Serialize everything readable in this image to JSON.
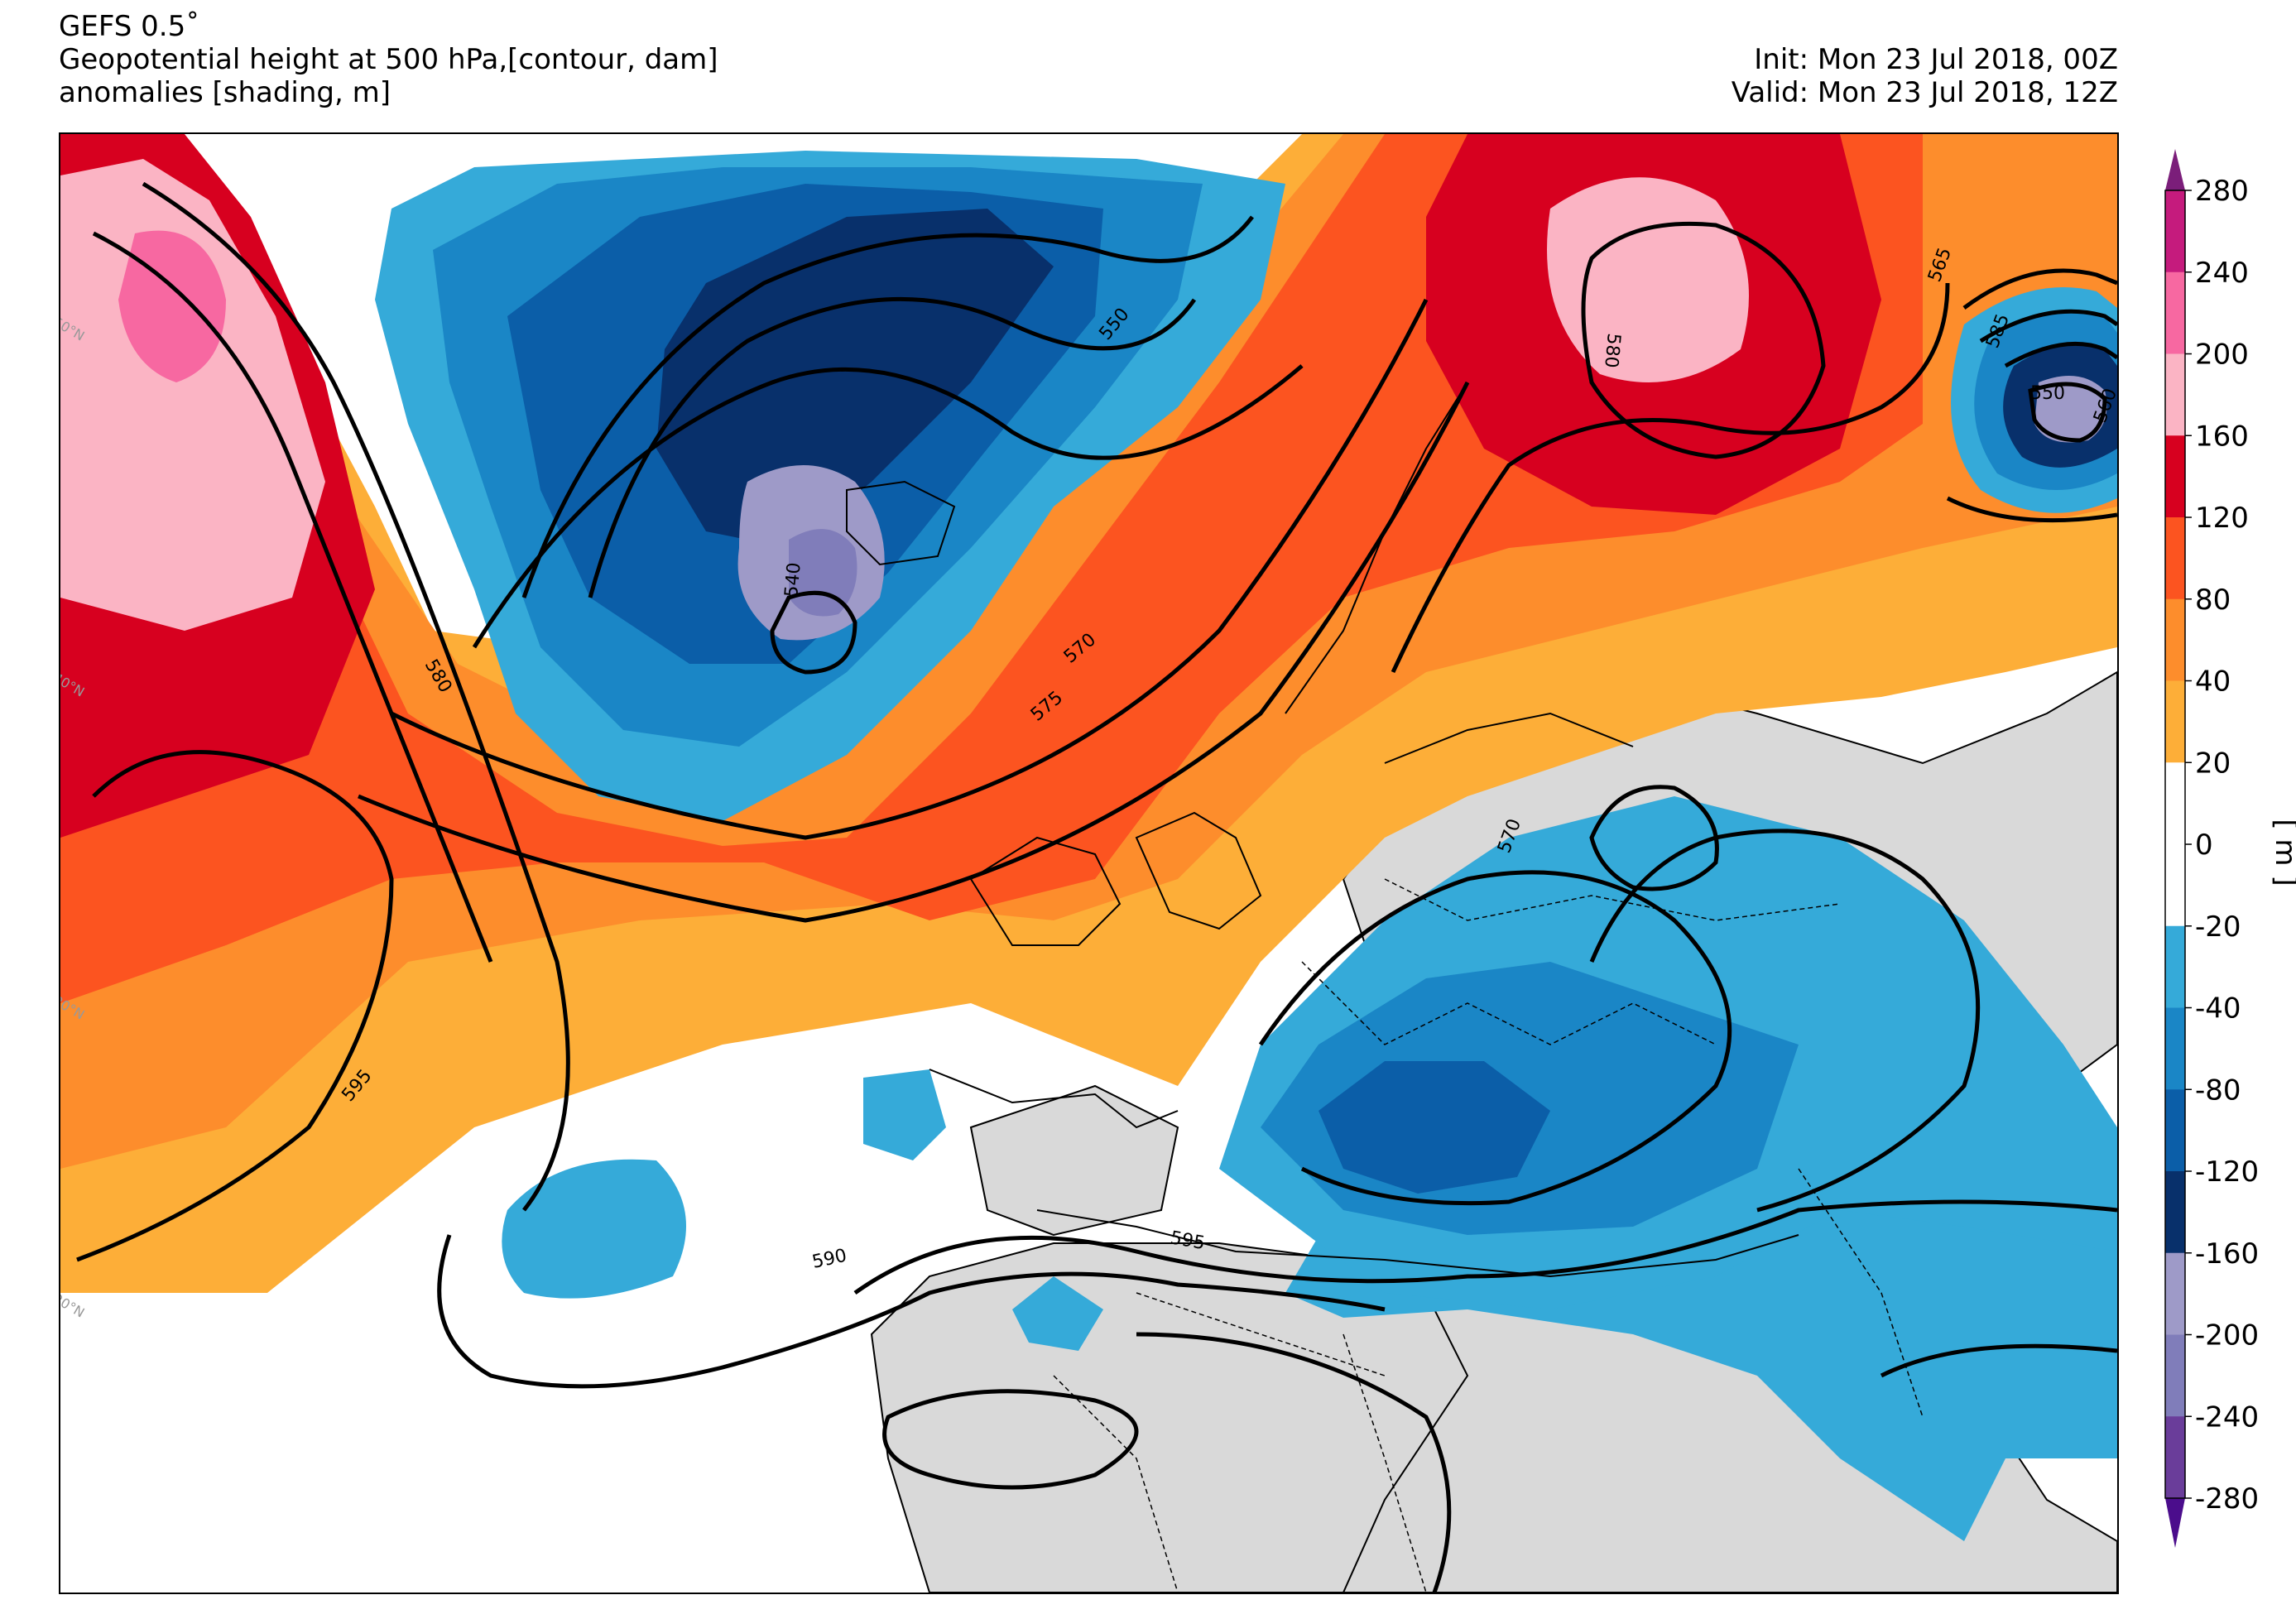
{
  "header": {
    "model": "GEFS 0.5˚",
    "variable": "Geopotential height at 500 hPa,[contour, dam]",
    "shading": "anomalies [shading, m]",
    "init": "Init: Mon 23 Jul 2018, 00Z",
    "valid": "Valid: Mon 23 Jul 2018, 12Z"
  },
  "map": {
    "latitude_labels": [
      "50°N",
      "40°N",
      "30°N",
      "20°N"
    ],
    "contour_labels": [
      "550",
      "540",
      "570",
      "575",
      "580",
      "595",
      "590",
      "595",
      "570",
      "580",
      "565",
      "550",
      "585",
      "560"
    ],
    "land_color": "#d9d9d9",
    "contour_color": "#000000"
  },
  "colorbar": {
    "unit": "[ m ]",
    "ticks": [
      "280",
      "240",
      "200",
      "160",
      "120",
      "80",
      "40",
      "20",
      "0",
      "-20",
      "-40",
      "-80",
      "-120",
      "-160",
      "-200",
      "-240",
      "-280"
    ],
    "colors": [
      "#c51b7d",
      "#f768a1",
      "#fbb4c4",
      "#d7001f",
      "#fc5420",
      "#fd8d2c",
      "#fdae38",
      "#ffffff",
      "#ffffff",
      "#35aad9",
      "#1a86c6",
      "#0b5ea8",
      "#08306b",
      "#9e9ac8",
      "#807dba",
      "#6a3d9a"
    ]
  }
}
